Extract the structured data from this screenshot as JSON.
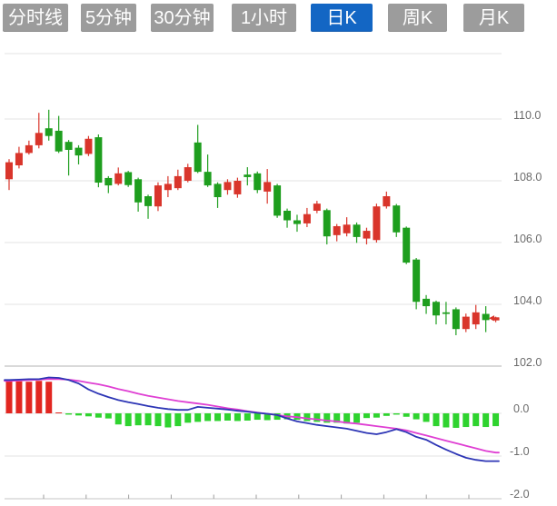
{
  "tabs": [
    {
      "name": "tab-timeline",
      "label": "分时线",
      "active": false
    },
    {
      "name": "tab-5min",
      "label": "5分钟",
      "active": false
    },
    {
      "name": "tab-30min",
      "label": "30分钟",
      "active": false
    },
    {
      "name": "tab-1hour",
      "label": "1小时",
      "active": false
    },
    {
      "name": "tab-daily",
      "label": "日K",
      "active": true
    },
    {
      "name": "tab-weekly",
      "label": "周K",
      "active": false
    },
    {
      "name": "tab-monthly",
      "label": "月K",
      "active": false
    }
  ],
  "colors": {
    "tab_bg": "#9c9c9c",
    "tab_active_bg": "#1366c4",
    "tab_text": "#ffffff",
    "candle_up": "#d9352b",
    "candle_down": "#1e9e1e",
    "macd_bar_pos": "#e22620",
    "macd_bar_neg": "#2fd32f",
    "dif_line": "#2d35b5",
    "dea_line": "#df3fd3",
    "grid": "#e3e3e3",
    "panel_divider": "#b3b3b3",
    "axis_line": "#c5c5c5",
    "axis_tick": "#9e9e9e",
    "axis_label": "#6b6b6b",
    "marker": "#d9352b"
  },
  "chart_data": {
    "type": "candlestick",
    "panels": [
      "price",
      "macd"
    ],
    "legend_position": "none",
    "price_axis": {
      "side": "right",
      "tick_labels": [
        "110.0",
        "108.0",
        "106.0",
        "104.0",
        "102.0"
      ],
      "tick_values": [
        110.0,
        108.0,
        106.0,
        104.0,
        102.0
      ],
      "visible_range": [
        101.9,
        112.1
      ],
      "grid": true
    },
    "indicator_axis": {
      "side": "right",
      "tick_labels": [
        "0.0",
        "-1.0",
        "-2.0"
      ],
      "tick_values": [
        0.0,
        -1.0,
        -2.0
      ],
      "visible_range": [
        -2.2,
        0.95
      ],
      "grid": true
    },
    "x_axis": {
      "tick_count": 11,
      "tick_labels": []
    },
    "candles_ohlc": [
      [
        108.05,
        108.7,
        107.7,
        108.6
      ],
      [
        108.5,
        109.1,
        108.4,
        108.9
      ],
      [
        108.9,
        109.3,
        108.85,
        109.15
      ],
      [
        109.15,
        110.2,
        109.05,
        109.55
      ],
      [
        109.7,
        110.3,
        109.3,
        109.45
      ],
      [
        109.62,
        110.1,
        108.9,
        108.95
      ],
      [
        109.26,
        109.32,
        108.17,
        109.0
      ],
      [
        109.07,
        109.15,
        108.53,
        108.82
      ],
      [
        108.87,
        109.45,
        108.8,
        109.36
      ],
      [
        109.41,
        109.5,
        107.79,
        107.94
      ],
      [
        108.09,
        108.15,
        107.6,
        107.85
      ],
      [
        107.9,
        108.43,
        107.85,
        108.24
      ],
      [
        108.28,
        108.32,
        107.8,
        107.86
      ],
      [
        108.05,
        108.1,
        107.0,
        107.3
      ],
      [
        107.5,
        107.55,
        106.77,
        107.18
      ],
      [
        107.17,
        107.95,
        107.02,
        107.85
      ],
      [
        107.7,
        108.15,
        107.47,
        107.9
      ],
      [
        107.76,
        108.36,
        107.7,
        108.15
      ],
      [
        108.0,
        108.55,
        107.95,
        108.44
      ],
      [
        109.24,
        109.81,
        108.25,
        108.29
      ],
      [
        108.29,
        108.85,
        107.8,
        107.85
      ],
      [
        107.9,
        107.95,
        107.12,
        107.47
      ],
      [
        107.7,
        108.05,
        107.55,
        107.96
      ],
      [
        107.56,
        108.1,
        107.45,
        108.0
      ],
      [
        108.2,
        108.44,
        107.85,
        108.12
      ],
      [
        108.24,
        108.3,
        107.6,
        107.7
      ],
      [
        107.65,
        108.38,
        107.26,
        107.96
      ],
      [
        107.85,
        107.9,
        106.8,
        106.87
      ],
      [
        107.03,
        107.1,
        106.48,
        106.72
      ],
      [
        106.72,
        106.9,
        106.35,
        106.6
      ],
      [
        106.62,
        107.12,
        106.5,
        106.92
      ],
      [
        107.03,
        107.35,
        106.95,
        107.26
      ],
      [
        107.05,
        107.1,
        105.94,
        106.2
      ],
      [
        106.24,
        106.6,
        106.04,
        106.53
      ],
      [
        106.3,
        106.82,
        106.2,
        106.58
      ],
      [
        106.58,
        106.65,
        105.99,
        106.18
      ],
      [
        106.13,
        106.48,
        105.94,
        106.38
      ],
      [
        106.08,
        107.26,
        106.0,
        107.17
      ],
      [
        107.17,
        107.65,
        107.1,
        107.5
      ],
      [
        107.2,
        107.25,
        106.18,
        106.33
      ],
      [
        106.48,
        106.52,
        105.3,
        105.35
      ],
      [
        105.45,
        105.5,
        103.84,
        104.08
      ],
      [
        104.18,
        104.3,
        103.69,
        103.94
      ],
      [
        104.08,
        104.12,
        103.35,
        103.64
      ],
      [
        103.74,
        104.08,
        103.35,
        103.69
      ],
      [
        103.84,
        103.9,
        103.0,
        103.2
      ],
      [
        103.2,
        103.7,
        103.1,
        103.6
      ],
      [
        103.35,
        103.98,
        103.2,
        103.74
      ],
      [
        103.69,
        103.94,
        103.1,
        103.49
      ],
      [
        103.48,
        103.6,
        103.42,
        103.55
      ]
    ],
    "macd": {
      "dif": [
        0.78,
        0.79,
        0.8,
        0.8,
        0.84,
        0.83,
        0.78,
        0.7,
        0.56,
        0.46,
        0.38,
        0.31,
        0.26,
        0.22,
        0.17,
        0.13,
        0.1,
        0.08,
        0.08,
        0.15,
        0.13,
        0.11,
        0.09,
        0.06,
        0.04,
        0.01,
        -0.01,
        -0.04,
        -0.12,
        -0.19,
        -0.23,
        -0.27,
        -0.3,
        -0.33,
        -0.36,
        -0.41,
        -0.46,
        -0.49,
        -0.44,
        -0.37,
        -0.44,
        -0.55,
        -0.62,
        -0.74,
        -0.85,
        -0.95,
        -1.04,
        -1.09,
        -1.12,
        -1.12
      ],
      "dea": [
        0.76,
        0.77,
        0.78,
        0.79,
        0.8,
        0.8,
        0.79,
        0.76,
        0.72,
        0.68,
        0.63,
        0.57,
        0.52,
        0.46,
        0.41,
        0.37,
        0.33,
        0.29,
        0.26,
        0.23,
        0.2,
        0.16,
        0.12,
        0.09,
        0.05,
        0.02,
        -0.01,
        -0.04,
        -0.07,
        -0.09,
        -0.12,
        -0.14,
        -0.17,
        -0.19,
        -0.22,
        -0.24,
        -0.27,
        -0.3,
        -0.33,
        -0.36,
        -0.4,
        -0.46,
        -0.52,
        -0.58,
        -0.64,
        -0.7,
        -0.76,
        -0.82,
        -0.88,
        -0.92
      ],
      "histogram": [
        0.75,
        0.75,
        0.74,
        0.76,
        0.74,
        0.02,
        -0.03,
        -0.05,
        -0.07,
        -0.1,
        -0.12,
        -0.26,
        -0.3,
        -0.28,
        -0.28,
        -0.3,
        -0.33,
        -0.3,
        -0.22,
        -0.2,
        -0.18,
        -0.18,
        -0.17,
        -0.18,
        -0.17,
        -0.15,
        -0.16,
        -0.15,
        -0.14,
        -0.15,
        -0.18,
        -0.2,
        -0.22,
        -0.22,
        -0.24,
        -0.22,
        -0.11,
        -0.1,
        -0.06,
        -0.03,
        -0.08,
        -0.14,
        -0.2,
        -0.3,
        -0.33,
        -0.34,
        -0.32,
        -0.3,
        -0.32,
        -0.3
      ]
    },
    "last_price_marker": {
      "price": 103.55
    }
  }
}
